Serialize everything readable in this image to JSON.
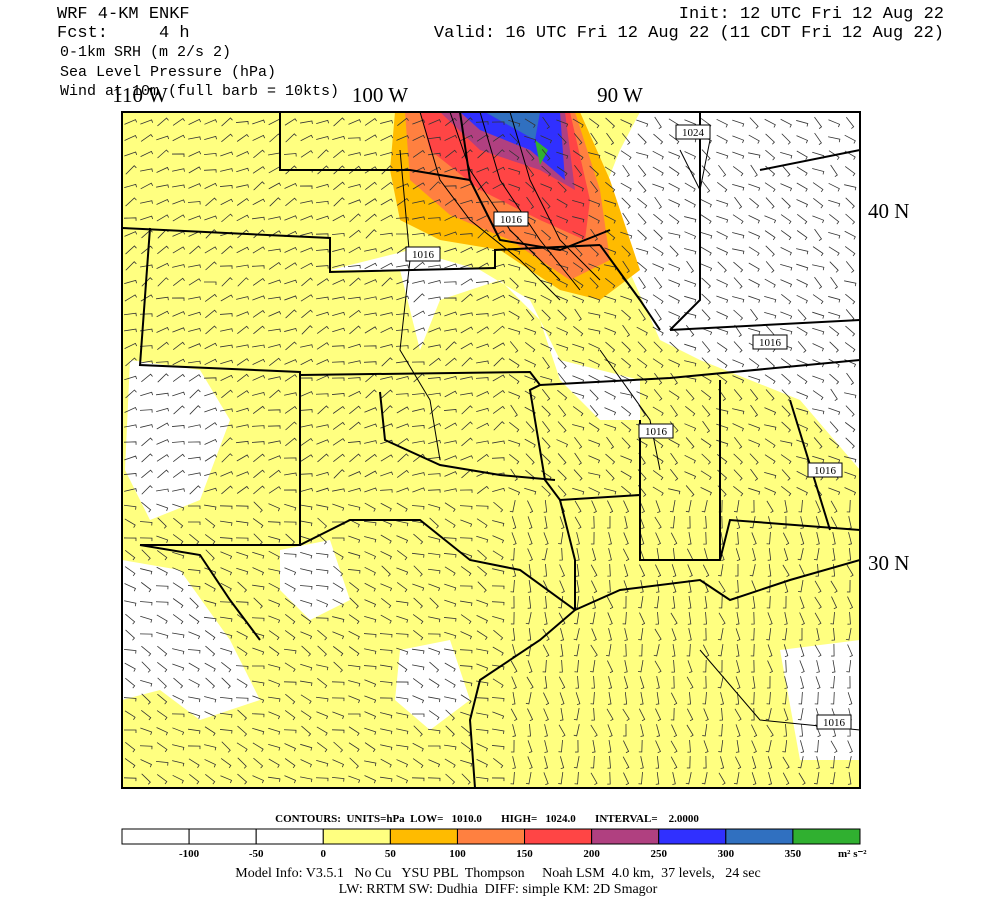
{
  "header": {
    "model": "WRF 4-KM ENKF",
    "forecast": "Fcst:     4 h",
    "init": "Init: 12 UTC Fri 12 Aug 22",
    "valid": "Valid: 16 UTC Fri 12 Aug 22 (11 CDT Fri 12 Aug 22)",
    "fields": [
      "0-1km SRH (m 2/s 2)",
      "Sea Level Pressure (hPa)",
      "Wind at 10m (full barb = 10kts)"
    ]
  },
  "map": {
    "lon_labels": [
      "110 W",
      "100 W",
      "90 W"
    ],
    "lat_labels": [
      "40 N",
      "30 N"
    ],
    "contour_labels": [
      "1024",
      "1016",
      "1016",
      "1016",
      "1016",
      "1016",
      "1016"
    ]
  },
  "contour_info": "CONTOURS:  UNITS=hPa  LOW=   1010.0       HIGH=   1024.0       INTERVAL=    2.0000",
  "colorbar": {
    "labels": [
      "-100",
      "-50",
      "0",
      "50",
      "100",
      "150",
      "200",
      "250",
      "300",
      "350"
    ],
    "units": "m² s⁻²"
  },
  "footer": [
    "Model Info: V3.5.1   No Cu   YSU PBL  Thompson     Noah LSM  4.0 km,  37 levels,   24 sec",
    "LW: RRTM SW: Dudhia  DIFF: simple KM: 2D Smagor"
  ]
}
